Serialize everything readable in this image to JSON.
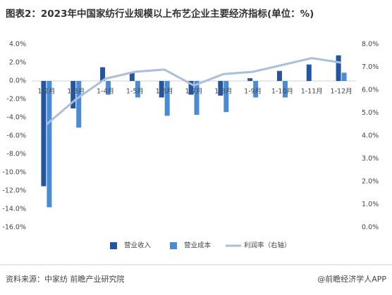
{
  "chart_data": {
    "type": "bar",
    "title": "图表2：2023年中国家纺行业规模以上布艺企业主要经济指标(单位：%)",
    "categories": [
      "1-2月",
      "1-3月",
      "1-4月",
      "1-5月",
      "1-6月",
      "1-7月",
      "1-8月",
      "1-9月",
      "1-10月",
      "1-11月",
      "1-12月"
    ],
    "series": [
      {
        "name": "营业收入",
        "type": "bar",
        "color": "#24569f",
        "values": [
          -11.5,
          -3.0,
          1.5,
          1.0,
          -1.8,
          -1.5,
          -1.6,
          0.3,
          1.1,
          1.8,
          2.8
        ]
      },
      {
        "name": "营业成本",
        "type": "bar",
        "color": "#4a8bd6",
        "values": [
          -13.8,
          -5.1,
          -1.5,
          -1.8,
          -3.8,
          -3.7,
          -3.4,
          -1.8,
          -1.8,
          0,
          0.9
        ]
      },
      {
        "name": "利润率（右轴）",
        "type": "line",
        "axis": "y2",
        "color": "#a9bfdc",
        "values": [
          4.5,
          5.6,
          6.5,
          6.8,
          6.9,
          6.2,
          6.7,
          6.8,
          7.1,
          7.4,
          7.2
        ]
      }
    ],
    "ylim": [
      -16,
      4
    ],
    "yticks": [
      {
        "value": -16,
        "label": "-16.0%"
      },
      {
        "value": -14,
        "label": "-14.0%"
      },
      {
        "value": -12,
        "label": "-12.0%"
      },
      {
        "value": -10,
        "label": "-10.0%"
      },
      {
        "value": -8,
        "label": "-8.0%"
      },
      {
        "value": -6,
        "label": "-6.0%"
      },
      {
        "value": -4,
        "label": "-4.0%"
      },
      {
        "value": -2,
        "label": "-2.0%"
      },
      {
        "value": 0,
        "label": "0.0%"
      },
      {
        "value": 2,
        "label": "2.0%"
      },
      {
        "value": 4,
        "label": "4.0%"
      }
    ],
    "y2lim": [
      0,
      8
    ],
    "y2ticks": [
      {
        "value": 0,
        "label": "0.0%"
      },
      {
        "value": 1,
        "label": "1.0%"
      },
      {
        "value": 2,
        "label": "2.0%"
      },
      {
        "value": 3,
        "label": "3.0%"
      },
      {
        "value": 4,
        "label": "4.0%"
      },
      {
        "value": 5,
        "label": "5.0%"
      },
      {
        "value": 6,
        "label": "6.0%"
      },
      {
        "value": 7,
        "label": "7.0%"
      },
      {
        "value": 8,
        "label": "8.0%"
      }
    ],
    "legend": "bottom",
    "source": "资料来源：中家纺 前瞻产业研究院",
    "credit": "@前瞻经济学人APP"
  }
}
